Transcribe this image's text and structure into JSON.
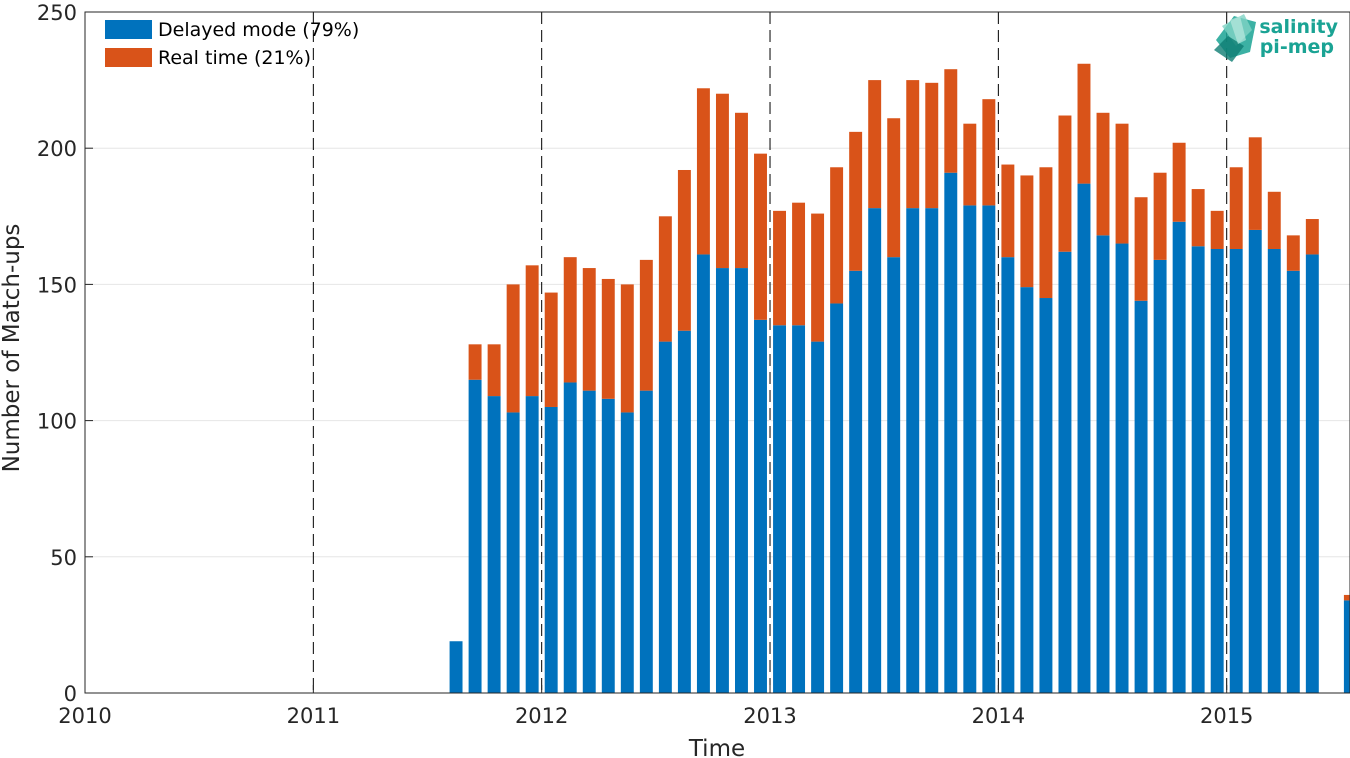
{
  "chart_data": {
    "type": "bar",
    "stacked": true,
    "xlabel": "Time",
    "ylabel": "Number of Match-ups",
    "ylim": [
      0,
      250
    ],
    "yticks": [
      0,
      50,
      100,
      150,
      200,
      250
    ],
    "xlim": [
      2010.0,
      2015.54
    ],
    "xticks": [
      "2010",
      "2011",
      "2012",
      "2013",
      "2014",
      "2015"
    ],
    "year_marker_lines": [
      2010,
      2011,
      2012,
      2013,
      2014,
      2015
    ],
    "grid": true,
    "legend_position": "top-left",
    "colors": {
      "delayed": "#0072bd",
      "realtime": "#d95319"
    },
    "categories": [
      "2011-08",
      "2011-09",
      "2011-10",
      "2011-11",
      "2011-12",
      "2012-01",
      "2012-02",
      "2012-03",
      "2012-04",
      "2012-05",
      "2012-06",
      "2012-07",
      "2012-08",
      "2012-09",
      "2012-10",
      "2012-11",
      "2012-12",
      "2013-01",
      "2013-02",
      "2013-03",
      "2013-04",
      "2013-05",
      "2013-06",
      "2013-07",
      "2013-08",
      "2013-09",
      "2013-10",
      "2013-11",
      "2013-12",
      "2014-01",
      "2014-02",
      "2014-03",
      "2014-04",
      "2014-05",
      "2014-06",
      "2014-07",
      "2014-08",
      "2014-09",
      "2014-10",
      "2014-11",
      "2014-12",
      "2015-01",
      "2015-02",
      "2015-03",
      "2015-04",
      "2015-05",
      "2015-06",
      "2015-07"
    ],
    "series": [
      {
        "name": "Delayed mode (79%)",
        "color": "#0072bd",
        "values": [
          19,
          115,
          109,
          103,
          109,
          105,
          114,
          111,
          108,
          103,
          111,
          129,
          133,
          161,
          156,
          156,
          137,
          135,
          135,
          129,
          143,
          155,
          178,
          160,
          178,
          178,
          191,
          179,
          179,
          160,
          149,
          145,
          162,
          187,
          168,
          165,
          144,
          159,
          173,
          164,
          163,
          163,
          170,
          163,
          155,
          161,
          null,
          34
        ]
      },
      {
        "name": "Real time (21%)",
        "color": "#d95319",
        "values": [
          0,
          13,
          19,
          47,
          48,
          42,
          46,
          45,
          44,
          47,
          48,
          46,
          59,
          61,
          64,
          57,
          61,
          42,
          45,
          47,
          50,
          51,
          47,
          51,
          47,
          46,
          38,
          30,
          39,
          34,
          41,
          48,
          50,
          44,
          45,
          44,
          38,
          32,
          29,
          21,
          14,
          30,
          34,
          21,
          13,
          13,
          null,
          2
        ]
      }
    ]
  },
  "logo": {
    "line1": "salinity",
    "line2": "pi-mep"
  }
}
